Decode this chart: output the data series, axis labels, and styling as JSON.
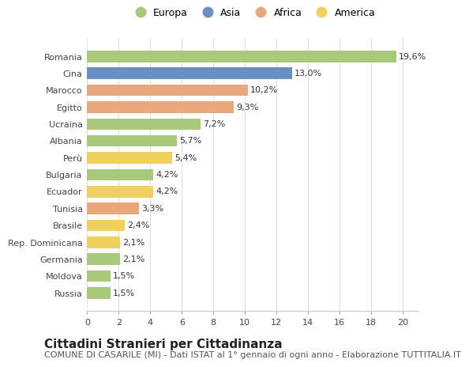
{
  "title": "Cittadini Stranieri per Cittadinanza",
  "subtitle": "COMUNE DI CASARILE (MI) - Dati ISTAT al 1° gennaio di ogni anno - Elaborazione TUTTITALIA.IT",
  "categories": [
    "Romania",
    "Cina",
    "Marocco",
    "Egitto",
    "Ucraina",
    "Albania",
    "Perù",
    "Bulgaria",
    "Ecuador",
    "Tunisia",
    "Brasile",
    "Rep. Dominicana",
    "Germania",
    "Moldova",
    "Russia"
  ],
  "values": [
    19.6,
    13.0,
    10.2,
    9.3,
    7.2,
    5.7,
    5.4,
    4.2,
    4.2,
    3.3,
    2.4,
    2.1,
    2.1,
    1.5,
    1.5
  ],
  "labels": [
    "19,6%",
    "13,0%",
    "10,2%",
    "9,3%",
    "7,2%",
    "5,7%",
    "5,4%",
    "4,2%",
    "4,2%",
    "3,3%",
    "2,4%",
    "2,1%",
    "2,1%",
    "1,5%",
    "1,5%"
  ],
  "colors": [
    "#a8c87a",
    "#6a8fc7",
    "#e8a87c",
    "#e8a87c",
    "#a8c87a",
    "#a8c87a",
    "#f0d060",
    "#a8c87a",
    "#f0d060",
    "#e8a87c",
    "#f0d060",
    "#f0d060",
    "#a8c87a",
    "#a8c87a",
    "#a8c87a"
  ],
  "legend": [
    {
      "label": "Europa",
      "color": "#a8c87a"
    },
    {
      "label": "Asia",
      "color": "#6a8fc7"
    },
    {
      "label": "Africa",
      "color": "#e8a87c"
    },
    {
      "label": "America",
      "color": "#f0d060"
    }
  ],
  "xlim": [
    0,
    21
  ],
  "xticks": [
    0,
    2,
    4,
    6,
    8,
    10,
    12,
    14,
    16,
    18,
    20
  ],
  "background_color": "#ffffff",
  "grid_color": "#e0e0e0",
  "bar_height": 0.68,
  "title_fontsize": 11,
  "subtitle_fontsize": 8,
  "label_fontsize": 8,
  "tick_fontsize": 8,
  "legend_fontsize": 9
}
